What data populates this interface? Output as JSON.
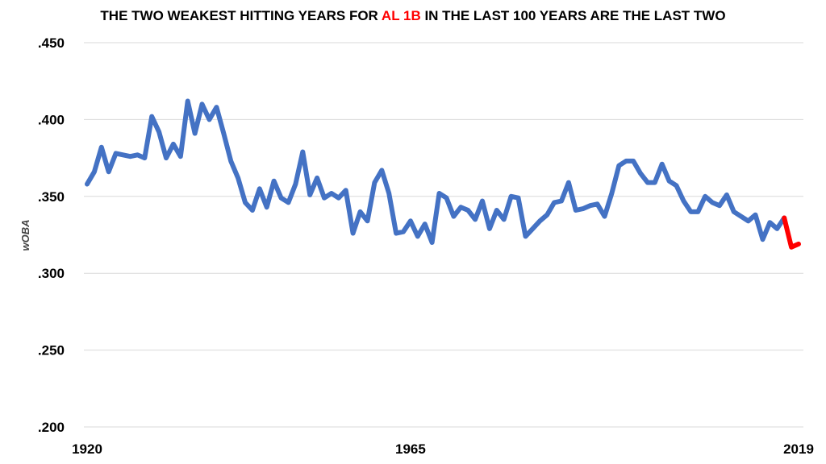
{
  "title": {
    "prefix": "THE TWO WEAKEST HITTING YEARS FOR ",
    "highlight": "AL 1B",
    "suffix": " IN THE LAST 100 YEARS ARE THE LAST TWO"
  },
  "chart_data": {
    "type": "line",
    "title": "THE TWO WEAKEST HITTING YEARS FOR AL 1B IN THE LAST 100 YEARS ARE THE LAST TWO",
    "xlabel": "",
    "ylabel": "wOBA",
    "xlim": [
      1920,
      2019
    ],
    "ylim": [
      0.2,
      0.45
    ],
    "yticks": [
      {
        "value": 0.45,
        "label": ".450"
      },
      {
        "value": 0.4,
        "label": ".400"
      },
      {
        "value": 0.35,
        "label": ".350"
      },
      {
        "value": 0.3,
        "label": ".300"
      },
      {
        "value": 0.25,
        "label": ".250"
      },
      {
        "value": 0.2,
        "label": ".200"
      }
    ],
    "xticks": [
      {
        "value": 1920,
        "label": "1920"
      },
      {
        "value": 1965,
        "label": "1965"
      },
      {
        "value": 2019,
        "label": "2019"
      }
    ],
    "grid": true,
    "colors": {
      "main": "#4472C4",
      "highlight": "#FF0000",
      "grid": "#D9D9D9"
    },
    "x": [
      1920,
      1921,
      1922,
      1923,
      1924,
      1925,
      1926,
      1927,
      1928,
      1929,
      1930,
      1931,
      1932,
      1933,
      1934,
      1935,
      1936,
      1937,
      1938,
      1939,
      1940,
      1941,
      1942,
      1943,
      1944,
      1945,
      1946,
      1947,
      1948,
      1949,
      1950,
      1951,
      1952,
      1953,
      1954,
      1955,
      1956,
      1957,
      1958,
      1959,
      1960,
      1961,
      1962,
      1963,
      1964,
      1965,
      1966,
      1967,
      1968,
      1969,
      1970,
      1971,
      1972,
      1973,
      1974,
      1975,
      1976,
      1977,
      1978,
      1979,
      1980,
      1981,
      1982,
      1983,
      1984,
      1985,
      1986,
      1987,
      1988,
      1989,
      1990,
      1991,
      1992,
      1993,
      1994,
      1995,
      1996,
      1997,
      1998,
      1999,
      2000,
      2001,
      2002,
      2003,
      2004,
      2005,
      2006,
      2007,
      2008,
      2009,
      2010,
      2011,
      2012,
      2013,
      2014,
      2015,
      2016,
      2017,
      2018,
      2019
    ],
    "series": [
      {
        "values": [
          0.358,
          0.366,
          0.382,
          0.366,
          0.378,
          0.377,
          0.376,
          0.377,
          0.375,
          0.402,
          0.392,
          0.375,
          0.384,
          0.376,
          0.412,
          0.391,
          0.41,
          0.4,
          0.408,
          0.391,
          0.373,
          0.362,
          0.346,
          0.341,
          0.355,
          0.343,
          0.36,
          0.349,
          0.346,
          0.358,
          0.379,
          0.351,
          0.362,
          0.349,
          0.352,
          0.349,
          0.354,
          0.326,
          0.34,
          0.334,
          0.359,
          0.367,
          0.352,
          0.326,
          0.327,
          0.334,
          0.324,
          0.332,
          0.32,
          0.352,
          0.349,
          0.337,
          0.343,
          0.341,
          0.335,
          0.347,
          0.329,
          0.341,
          0.335,
          0.35,
          0.349,
          0.324,
          0.329,
          0.334,
          0.338,
          0.346,
          0.347,
          0.359,
          0.341,
          0.342,
          0.344,
          0.345,
          0.337,
          0.352,
          0.37,
          0.373,
          0.373,
          0.365,
          0.359,
          0.359,
          0.371,
          0.36,
          0.357,
          0.347,
          0.34,
          0.34,
          0.35,
          0.346,
          0.344,
          0.351,
          0.34,
          0.337,
          0.334,
          0.338,
          0.322,
          0.333,
          0.329,
          0.336,
          0.317,
          0.319
        ],
        "highlight_from_index": 97
      }
    ]
  }
}
